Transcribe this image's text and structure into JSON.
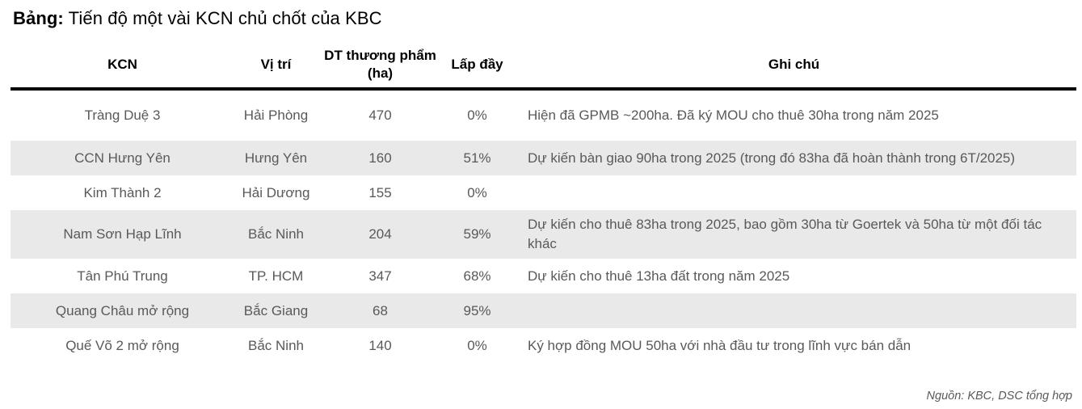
{
  "title": {
    "prefix": "Bảng:",
    "text": "Tiến độ một vài KCN chủ chốt của KBC"
  },
  "table": {
    "columns": [
      "KCN",
      "Vị trí",
      "DT thương phẩm (ha)",
      "Lấp đầy",
      "Ghi chú"
    ],
    "rows": [
      {
        "kcn": "Tràng Duệ 3",
        "vi_tri": "Hải Phòng",
        "dt": "470",
        "lap_day": "0%",
        "ghi_chu": "Hiện đã GPMB ~200ha. Đã ký MOU cho thuê 30ha trong năm 2025"
      },
      {
        "kcn": "CCN Hưng Yên",
        "vi_tri": "Hưng Yên",
        "dt": "160",
        "lap_day": "51%",
        "ghi_chu": "Dự kiến bàn giao 90ha trong 2025 (trong đó 83ha đã hoàn thành trong 6T/2025)"
      },
      {
        "kcn": "Kim Thành 2",
        "vi_tri": "Hải Dương",
        "dt": "155",
        "lap_day": "0%",
        "ghi_chu": ""
      },
      {
        "kcn": "Nam Sơn Hạp Lĩnh",
        "vi_tri": "Bắc Ninh",
        "dt": "204",
        "lap_day": "59%",
        "ghi_chu": "Dự kiến cho thuê 83ha trong 2025, bao gồm 30ha từ Goertek và 50ha từ một đối tác khác"
      },
      {
        "kcn": "Tân Phú Trung",
        "vi_tri": "TP. HCM",
        "dt": "347",
        "lap_day": "68%",
        "ghi_chu": "Dự kiến cho thuê 13ha đất trong năm 2025"
      },
      {
        "kcn": "Quang Châu mở rộng",
        "vi_tri": "Bắc Giang",
        "dt": "68",
        "lap_day": "95%",
        "ghi_chu": ""
      },
      {
        "kcn": "Quế Võ 2 mở rộng",
        "vi_tri": "Bắc Ninh",
        "dt": "140",
        "lap_day": "0%",
        "ghi_chu": "Ký hợp đồng MOU 50ha với nhà đầu tư trong lĩnh vực bán dẫn"
      }
    ]
  },
  "footer": {
    "source": "Nguồn: KBC, DSC tổng hợp"
  },
  "colors": {
    "stripe": "#e9e9e9",
    "body_text": "#595959",
    "header_text": "#000000",
    "header_border": "#000000"
  }
}
